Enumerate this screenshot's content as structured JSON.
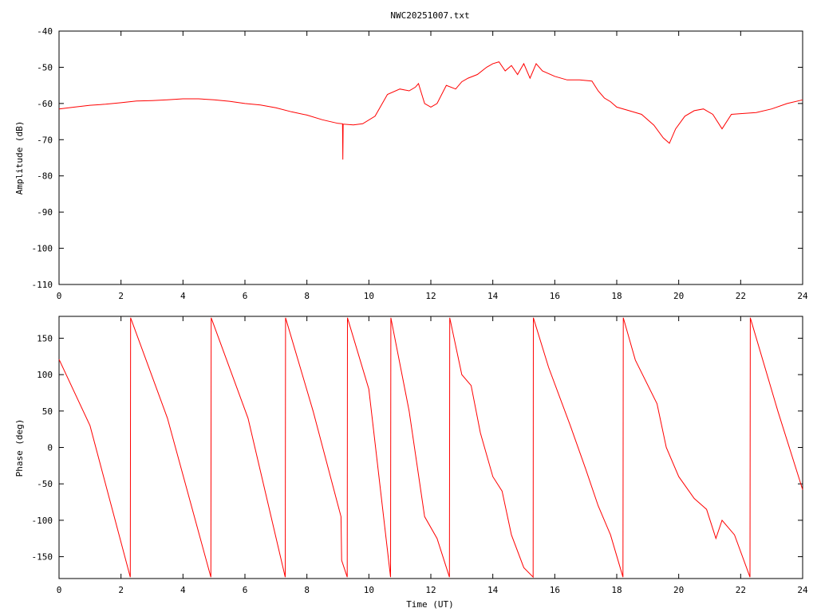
{
  "chart_data": [
    {
      "type": "line",
      "title": "NWC20251007.txt",
      "xlabel": "",
      "ylabel": "Amplitude (dB)",
      "xlim": [
        0,
        24
      ],
      "ylim": [
        -110,
        -40
      ],
      "xticks": [
        0,
        2,
        4,
        6,
        8,
        10,
        12,
        14,
        16,
        18,
        20,
        22,
        24
      ],
      "yticks": [
        -40,
        -50,
        -60,
        -70,
        -80,
        -90,
        -100,
        -110
      ],
      "grid": false,
      "series": [
        {
          "color": "#ff0000",
          "x": [
            0,
            0.5,
            1,
            1.5,
            2,
            2.5,
            3,
            3.5,
            4,
            4.5,
            5,
            5.5,
            6,
            6.5,
            7,
            7.5,
            8,
            8.5,
            9,
            9.15,
            9.16,
            9.17,
            9.5,
            9.8,
            10.2,
            10.6,
            11,
            11.3,
            11.5,
            11.6,
            11.8,
            12,
            12.2,
            12.5,
            12.8,
            13,
            13.2,
            13.5,
            13.8,
            14,
            14.2,
            14.4,
            14.6,
            14.8,
            15,
            15.2,
            15.4,
            15.6,
            16,
            16.4,
            16.8,
            17.2,
            17.4,
            17.6,
            17.8,
            18,
            18.4,
            18.8,
            19.2,
            19.5,
            19.7,
            19.9,
            20.2,
            20.5,
            20.8,
            21.1,
            21.4,
            21.7,
            22,
            22.5,
            23,
            23.5,
            24
          ],
          "y": [
            -61.5,
            -61,
            -60.5,
            -60.2,
            -59.8,
            -59.3,
            -59.2,
            -59,
            -58.7,
            -58.7,
            -59,
            -59.4,
            -60,
            -60.4,
            -61.2,
            -62.3,
            -63.2,
            -64.5,
            -65.5,
            -65.6,
            -75.5,
            -65.7,
            -65.9,
            -65.6,
            -63.5,
            -57.5,
            -56,
            -56.5,
            -55.5,
            -54.5,
            -60,
            -61,
            -60,
            -55,
            -56,
            -54,
            -53,
            -52,
            -50,
            -49,
            -48.5,
            -51,
            -49.5,
            -52,
            -49,
            -53,
            -49,
            -51,
            -52.5,
            -53.5,
            -53.5,
            -53.8,
            -56.5,
            -58.5,
            -59.5,
            -61,
            -62,
            -63,
            -66,
            -69.5,
            -71,
            -67,
            -63.5,
            -62,
            -61.5,
            -63,
            -67,
            -63,
            -62.8,
            -62.5,
            -61.5,
            -60,
            -59
          ]
        }
      ]
    },
    {
      "type": "line",
      "title": "",
      "xlabel": "Time (UT)",
      "ylabel": "Phase (deg)",
      "xlim": [
        0,
        24
      ],
      "ylim": [
        -180,
        180
      ],
      "xticks": [
        0,
        2,
        4,
        6,
        8,
        10,
        12,
        14,
        16,
        18,
        20,
        22,
        24
      ],
      "yticks": [
        150,
        100,
        50,
        0,
        -50,
        -100,
        -150
      ],
      "grid": false,
      "series": [
        {
          "color": "#ff0000",
          "x": [
            0,
            1,
            2.3,
            2.31,
            3.5,
            4.9,
            4.91,
            6.1,
            7.3,
            7.31,
            8.2,
            9.1,
            9.12,
            9.3,
            9.31,
            10,
            10.7,
            10.71,
            11.3,
            11.8,
            12.2,
            12.6,
            12.61,
            13,
            13.3,
            13.6,
            14,
            14.3,
            14.6,
            15,
            15.3,
            15.31,
            15.8,
            16.5,
            17,
            17.4,
            17.8,
            18.2,
            18.21,
            18.6,
            19.3,
            19.6,
            20,
            20.5,
            20.9,
            21.2,
            21.4,
            21.8,
            22.3,
            22.31,
            23.2,
            24
          ],
          "y": [
            121,
            30,
            -178,
            178,
            40,
            -178,
            178,
            40,
            -178,
            178,
            50,
            -95,
            -155,
            -178,
            178,
            80,
            -178,
            178,
            50,
            -95,
            -125,
            -178,
            178,
            100,
            85,
            20,
            -40,
            -60,
            -120,
            -165,
            -178,
            178,
            110,
            30,
            -30,
            -80,
            -120,
            -178,
            178,
            120,
            60,
            0,
            -40,
            -70,
            -85,
            -125,
            -100,
            -120,
            -178,
            178,
            50,
            -58
          ]
        }
      ]
    }
  ]
}
